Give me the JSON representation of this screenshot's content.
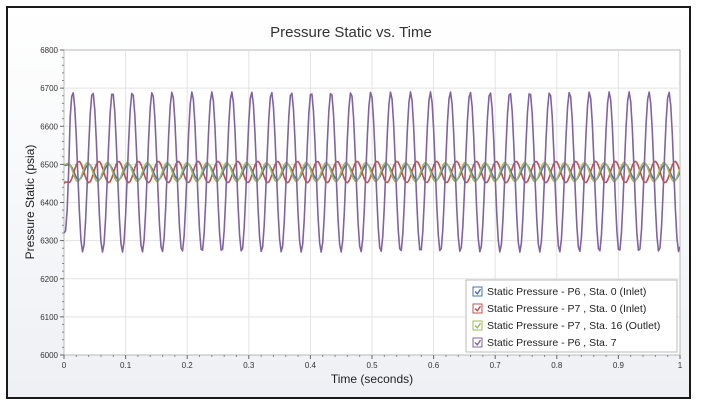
{
  "chart_data": {
    "type": "line",
    "title": "Pressure Static vs. Time",
    "xlabel": "Time (seconds)",
    "ylabel": "Pressure Static (psia)",
    "xlim": [
      0,
      1
    ],
    "ylim": [
      6000,
      6800
    ],
    "xticks": [
      0,
      0.1,
      0.2,
      0.3,
      0.4,
      0.5,
      0.6,
      0.7,
      0.8,
      0.9,
      1
    ],
    "xtick_labels": [
      "0",
      "0.1",
      "0.2",
      "0.3",
      "0.4",
      "0.5",
      "0.6",
      "0.7",
      "0.8",
      "0.9",
      "1"
    ],
    "yticks": [
      6000,
      6100,
      6200,
      6300,
      6400,
      6500,
      6600,
      6700,
      6800
    ],
    "ytick_labels": [
      "6000",
      "6100",
      "6200",
      "6300",
      "6400",
      "6500",
      "6600",
      "6700",
      "6800"
    ],
    "grid": true,
    "legend_position": "bottom-right",
    "sample_step": 0.0025,
    "series": [
      {
        "name": "Static Pressure - P6 , Sta. 0 (Inlet)",
        "color": "#4a6fb0",
        "start_value": 6500,
        "mean": 6480,
        "amplitude": 20,
        "frequency_hz": 31,
        "phase": 0
      },
      {
        "name": "Static Pressure - P7 , Sta. 0 (Inlet)",
        "color": "#c0504d",
        "start_value": 6450,
        "mean": 6480,
        "amplitude": 28,
        "frequency_hz": 31,
        "phase": 3.1416
      },
      {
        "name": "Static Pressure - P7 , Sta. 16 (Outlet)",
        "color": "#9bbb59",
        "start_value": 6500,
        "mean": 6480,
        "amplitude": 25,
        "frequency_hz": 31,
        "phase": 0.35
      },
      {
        "name": "Static Pressure - P6 , Sta. 7",
        "color": "#8064a2",
        "start_value": 6320,
        "mean": 6480,
        "amplitude": 210,
        "frequency_hz": 31,
        "phase": -1.2
      }
    ]
  }
}
